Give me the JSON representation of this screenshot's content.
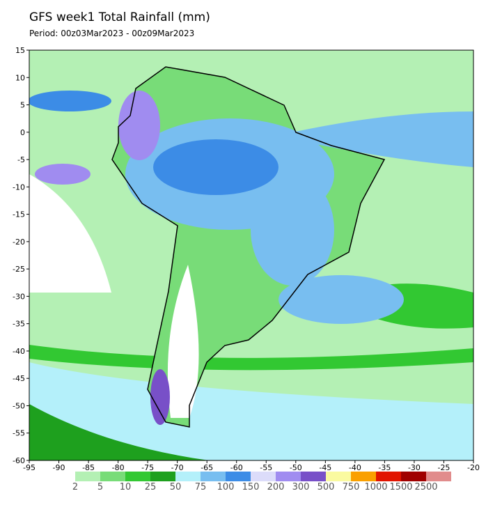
{
  "header": {
    "title": "GFS week1 Total Rainfall (mm)",
    "period": "Period: 00z03Mar2023 - 00z09Mar2023"
  },
  "map": {
    "xlim": [
      -95,
      -20
    ],
    "ylim": [
      -60,
      15
    ],
    "xticks": [
      -95,
      -90,
      -85,
      -80,
      -75,
      -70,
      -65,
      -60,
      -55,
      -50,
      -45,
      -40,
      -35,
      -30,
      -25,
      -20
    ],
    "yticks": [
      15,
      10,
      5,
      0,
      -5,
      -10,
      -15,
      -20,
      -25,
      -30,
      -35,
      -40,
      -45,
      -50,
      -55,
      -60
    ]
  },
  "colorbar": {
    "labels": [
      2,
      5,
      10,
      25,
      50,
      75,
      100,
      150,
      200,
      300,
      500,
      750,
      1000,
      1500,
      2500
    ],
    "colors": [
      "#b4f0b4",
      "#78dc78",
      "#32c832",
      "#1ea01e",
      "#b4f0fa",
      "#78bef0",
      "#3c8ce6",
      "#dcdcfa",
      "#a08cf0",
      "#7850c8",
      "#fafaa0",
      "#faa000",
      "#e11400",
      "#a00000",
      "#e18c8c"
    ]
  }
}
